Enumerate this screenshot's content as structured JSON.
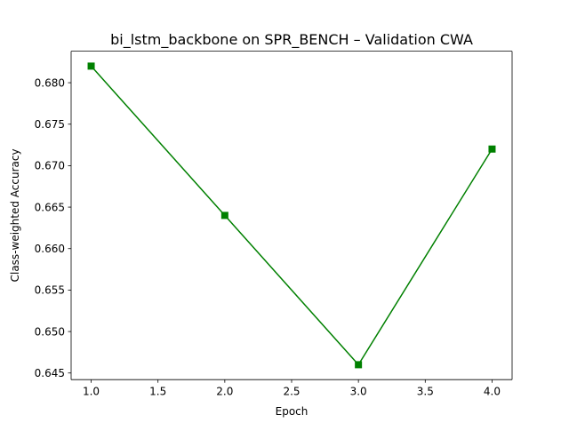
{
  "chart_data": {
    "type": "line",
    "title": "bi_lstm_backbone on SPR_BENCH – Validation CWA",
    "xlabel": "Epoch",
    "ylabel": "Class-weighted Accuracy",
    "x": [
      1.0,
      2.0,
      3.0,
      4.0
    ],
    "series": [
      {
        "values": [
          0.682,
          0.664,
          0.646,
          0.672
        ],
        "color": "#008000",
        "marker": "square"
      }
    ],
    "xlim": [
      0.85,
      4.15
    ],
    "ylim": [
      0.6442,
      0.6838
    ],
    "xticks": [
      "1.0",
      "1.5",
      "2.0",
      "2.5",
      "3.0",
      "3.5",
      "4.0"
    ],
    "yticks": [
      "0.645",
      "0.650",
      "0.655",
      "0.660",
      "0.665",
      "0.670",
      "0.675",
      "0.680"
    ],
    "grid": false,
    "legend": "none"
  }
}
